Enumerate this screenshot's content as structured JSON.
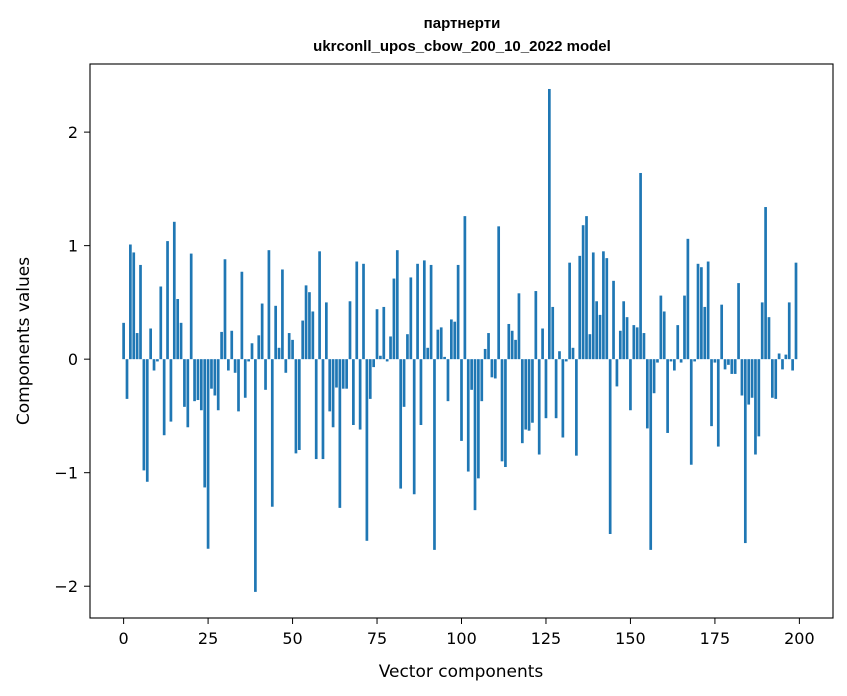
{
  "chart_data": {
    "type": "bar",
    "title": [
      "партнерти",
      "ukrconll_upos_cbow_200_10_2022 model"
    ],
    "xlabel": "Vector components",
    "ylabel": "Components values",
    "xlim": [
      -9.95,
      209.95
    ],
    "ylim": [
      -2.28,
      2.6
    ],
    "x_ticks": [
      0,
      25,
      50,
      75,
      100,
      125,
      150,
      175,
      200
    ],
    "y_ticks": [
      -2,
      -1,
      0,
      1,
      2
    ],
    "x_tick_labels": [
      "0",
      "25",
      "50",
      "75",
      "100",
      "125",
      "150",
      "175",
      "200"
    ],
    "y_tick_labels": [
      "−2",
      "−1",
      "0",
      "1",
      "2"
    ],
    "grid": false,
    "color": "#1f77b4",
    "x": [
      0,
      1,
      2,
      3,
      4,
      5,
      6,
      7,
      8,
      9,
      10,
      11,
      12,
      13,
      14,
      15,
      16,
      17,
      18,
      19,
      20,
      21,
      22,
      23,
      24,
      25,
      26,
      27,
      28,
      29,
      30,
      31,
      32,
      33,
      34,
      35,
      36,
      37,
      38,
      39,
      40,
      41,
      42,
      43,
      44,
      45,
      46,
      47,
      48,
      49,
      50,
      51,
      52,
      53,
      54,
      55,
      56,
      57,
      58,
      59,
      60,
      61,
      62,
      63,
      64,
      65,
      66,
      67,
      68,
      69,
      70,
      71,
      72,
      73,
      74,
      75,
      76,
      77,
      78,
      79,
      80,
      81,
      82,
      83,
      84,
      85,
      86,
      87,
      88,
      89,
      90,
      91,
      92,
      93,
      94,
      95,
      96,
      97,
      98,
      99,
      100,
      101,
      102,
      103,
      104,
      105,
      106,
      107,
      108,
      109,
      110,
      111,
      112,
      113,
      114,
      115,
      116,
      117,
      118,
      119,
      120,
      121,
      122,
      123,
      124,
      125,
      126,
      127,
      128,
      129,
      130,
      131,
      132,
      133,
      134,
      135,
      136,
      137,
      138,
      139,
      140,
      141,
      142,
      143,
      144,
      145,
      146,
      147,
      148,
      149,
      150,
      151,
      152,
      153,
      154,
      155,
      156,
      157,
      158,
      159,
      160,
      161,
      162,
      163,
      164,
      165,
      166,
      167,
      168,
      169,
      170,
      171,
      172,
      173,
      174,
      175,
      176,
      177,
      178,
      179,
      180,
      181,
      182,
      183,
      184,
      185,
      186,
      187,
      188,
      189,
      190,
      191,
      192,
      193,
      194,
      195,
      196,
      197,
      198,
      199
    ],
    "values": [
      0.32,
      -0.35,
      1.01,
      0.94,
      0.23,
      0.83,
      -0.98,
      -1.08,
      0.27,
      -0.1,
      -0.02,
      0.64,
      -0.67,
      1.04,
      -0.55,
      1.21,
      0.53,
      0.32,
      -0.42,
      -0.6,
      0.93,
      -0.37,
      -0.36,
      -0.45,
      -1.13,
      -1.67,
      -0.26,
      -0.32,
      -0.45,
      0.24,
      0.88,
      -0.1,
      0.25,
      -0.12,
      -0.46,
      0.77,
      -0.34,
      -0.02,
      0.14,
      -2.05,
      0.21,
      0.49,
      -0.27,
      0.96,
      -1.3,
      0.47,
      0.1,
      0.79,
      -0.12,
      0.23,
      0.17,
      -0.83,
      -0.8,
      0.34,
      0.65,
      0.59,
      0.42,
      -0.88,
      0.95,
      -0.88,
      0.5,
      -0.46,
      -0.6,
      -0.25,
      -1.31,
      -0.26,
      -0.26,
      0.51,
      -0.58,
      0.86,
      -0.62,
      0.84,
      -1.6,
      -0.35,
      -0.07,
      0.44,
      0.03,
      0.46,
      -0.02,
      0.2,
      0.71,
      0.96,
      -1.14,
      -0.42,
      0.22,
      0.72,
      -1.19,
      0.84,
      -0.58,
      0.87,
      0.1,
      0.83,
      -1.68,
      0.26,
      0.28,
      0.02,
      -0.37,
      0.35,
      0.33,
      0.83,
      -0.72,
      1.26,
      -0.99,
      -0.27,
      -1.33,
      -1.05,
      -0.37,
      0.09,
      0.23,
      -0.16,
      -0.17,
      1.17,
      -0.9,
      -0.95,
      0.31,
      0.25,
      0.17,
      0.58,
      -0.74,
      -0.62,
      -0.63,
      -0.56,
      0.6,
      -0.84,
      0.27,
      -0.52,
      2.38,
      0.46,
      -0.52,
      0.07,
      -0.69,
      -0.02,
      0.85,
      0.1,
      -0.85,
      0.91,
      1.18,
      1.26,
      0.22,
      0.94,
      0.51,
      0.39,
      0.95,
      0.89,
      -1.54,
      0.69,
      -0.24,
      0.25,
      0.51,
      0.37,
      -0.45,
      0.3,
      0.28,
      1.64,
      0.23,
      -0.61,
      -1.68,
      -0.3,
      -0.03,
      0.56,
      0.42,
      -0.65,
      -0.02,
      -0.1,
      0.3,
      -0.03,
      0.56,
      1.06,
      -0.93,
      -0.02,
      0.84,
      0.81,
      0.46,
      0.86,
      -0.59,
      -0.03,
      -0.77,
      0.48,
      -0.09,
      -0.05,
      -0.13,
      -0.13,
      0.67,
      -0.32,
      -1.62,
      -0.4,
      -0.34,
      -0.84,
      -0.68,
      0.5,
      1.34,
      0.37,
      -0.34,
      -0.35,
      0.05,
      -0.09,
      0.04,
      0.5,
      -0.1,
      0.85
    ]
  }
}
